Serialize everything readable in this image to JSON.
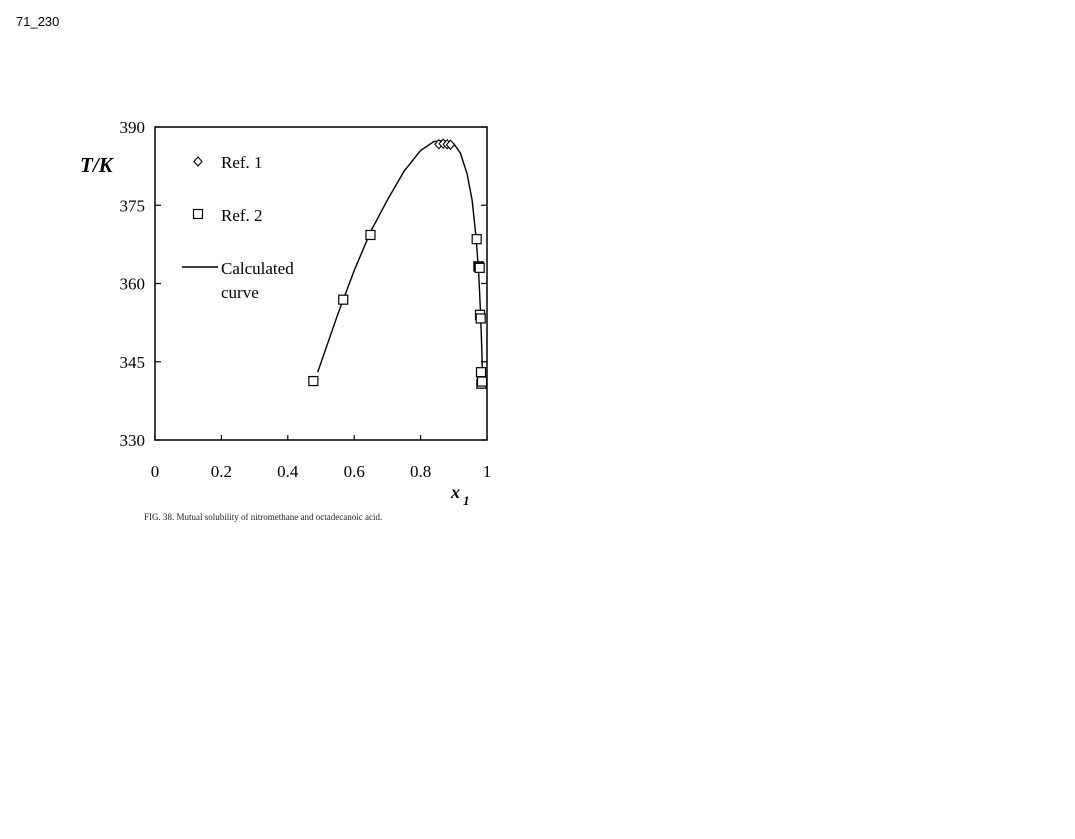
{
  "page_label": "71_230",
  "chart_data": {
    "type": "scatter",
    "title": "",
    "caption": "FIG. 38. Mutual solubility of nitromethane and octadecanoic acid.",
    "xlabel": "x",
    "xlabel_sub": "1",
    "ylabel": "T/K",
    "xlim": [
      0,
      1
    ],
    "ylim": [
      330,
      390
    ],
    "x_ticks": [
      0,
      0.2,
      0.4,
      0.6,
      0.8,
      1
    ],
    "x_tick_labels": [
      "0",
      "0.2",
      "0.4",
      "0.6",
      "0.8",
      "1"
    ],
    "y_ticks": [
      330,
      345,
      360,
      375,
      390
    ],
    "y_tick_labels": [
      "330",
      "345",
      "360",
      "375",
      "390"
    ],
    "legend_position": "upper-left inside",
    "series": [
      {
        "name": "Ref. 1",
        "marker": "diamond",
        "points": [
          [
            0.855,
            386.7
          ],
          [
            0.868,
            386.8
          ],
          [
            0.88,
            386.7
          ],
          [
            0.89,
            386.6
          ]
        ]
      },
      {
        "name": "Ref. 2",
        "marker": "square",
        "points": [
          [
            0.477,
            341.3
          ],
          [
            0.567,
            356.9
          ],
          [
            0.649,
            369.3
          ],
          [
            0.969,
            368.5
          ],
          [
            0.974,
            363.3
          ],
          [
            0.976,
            363.2
          ],
          [
            0.978,
            363.0
          ],
          [
            0.979,
            354.0
          ],
          [
            0.981,
            353.3
          ],
          [
            0.982,
            343.0
          ],
          [
            0.983,
            340.8
          ],
          [
            0.985,
            341.2
          ]
        ]
      },
      {
        "name": "Calculated\ncurve",
        "legend_lines": [
          "Calculated",
          "curve"
        ],
        "marker": "line",
        "points": [
          [
            0.49,
            343.0
          ],
          [
            0.55,
            354.0
          ],
          [
            0.6,
            362.5
          ],
          [
            0.65,
            370.0
          ],
          [
            0.7,
            376.0
          ],
          [
            0.75,
            381.5
          ],
          [
            0.8,
            385.5
          ],
          [
            0.84,
            387.2
          ],
          [
            0.87,
            387.4
          ],
          [
            0.9,
            386.8
          ],
          [
            0.92,
            385.0
          ],
          [
            0.94,
            381.0
          ],
          [
            0.955,
            376.0
          ],
          [
            0.967,
            369.0
          ],
          [
            0.975,
            362.0
          ],
          [
            0.98,
            355.0
          ],
          [
            0.984,
            348.0
          ],
          [
            0.987,
            341.0
          ]
        ]
      }
    ]
  }
}
